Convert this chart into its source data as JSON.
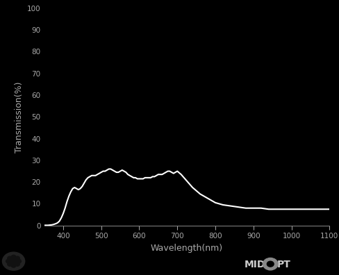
{
  "title": "",
  "xlabel": "Wavelength(nm)",
  "ylabel": "Transmission(%)",
  "background_color": "#000000",
  "line_color": "#ffffff",
  "text_color": "#aaaaaa",
  "spine_color": "#888888",
  "xlim": [
    350,
    1100
  ],
  "ylim": [
    0,
    100
  ],
  "xticks": [
    400,
    500,
    600,
    700,
    800,
    900,
    1000,
    1100
  ],
  "yticks": [
    0,
    10,
    20,
    30,
    40,
    50,
    60,
    70,
    80,
    90,
    100
  ],
  "wavelengths": [
    350,
    355,
    360,
    365,
    370,
    375,
    380,
    385,
    390,
    395,
    400,
    405,
    410,
    415,
    420,
    425,
    430,
    435,
    440,
    445,
    450,
    455,
    460,
    465,
    470,
    475,
    480,
    485,
    490,
    495,
    500,
    505,
    510,
    515,
    520,
    525,
    530,
    535,
    540,
    545,
    550,
    555,
    560,
    565,
    570,
    575,
    580,
    585,
    590,
    595,
    600,
    605,
    610,
    615,
    620,
    625,
    630,
    635,
    640,
    645,
    650,
    655,
    660,
    665,
    670,
    675,
    680,
    685,
    690,
    695,
    700,
    710,
    720,
    730,
    740,
    750,
    760,
    770,
    780,
    790,
    800,
    820,
    840,
    860,
    880,
    900,
    920,
    940,
    960,
    980,
    1000,
    1020,
    1040,
    1060,
    1080,
    1100
  ],
  "transmission": [
    0.1,
    0.1,
    0.1,
    0.2,
    0.3,
    0.5,
    0.8,
    1.2,
    2.0,
    3.5,
    5.5,
    8.0,
    11.0,
    13.5,
    15.5,
    17.0,
    17.5,
    17.0,
    16.5,
    17.0,
    18.0,
    19.5,
    21.0,
    22.0,
    22.5,
    23.0,
    23.0,
    23.0,
    23.5,
    24.0,
    24.5,
    25.0,
    25.0,
    25.5,
    26.0,
    26.0,
    25.5,
    25.0,
    24.5,
    24.5,
    25.0,
    25.5,
    25.0,
    24.5,
    23.5,
    23.0,
    22.5,
    22.0,
    22.0,
    21.5,
    21.5,
    21.5,
    21.5,
    22.0,
    22.0,
    22.0,
    22.0,
    22.5,
    22.5,
    23.0,
    23.5,
    23.5,
    23.5,
    24.0,
    24.5,
    25.0,
    25.0,
    24.5,
    24.0,
    24.5,
    25.0,
    23.5,
    21.5,
    19.5,
    17.5,
    16.0,
    14.5,
    13.5,
    12.5,
    11.5,
    10.5,
    9.5,
    9.0,
    8.5,
    8.0,
    8.0,
    8.0,
    7.5,
    7.5,
    7.5,
    7.5,
    7.5,
    7.5,
    7.5,
    7.5,
    7.5
  ],
  "linewidth": 1.5
}
